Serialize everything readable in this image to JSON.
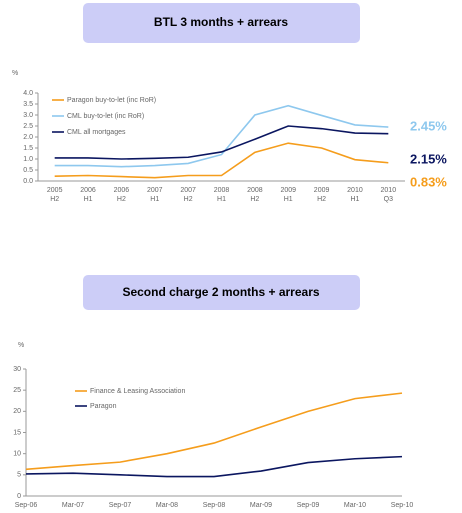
{
  "chart_data": [
    {
      "type": "line",
      "title": "BTL 3 months + arrears",
      "y_label": "%",
      "categories": [
        "2005\nH2",
        "2006\nH1",
        "2006\nH2",
        "2007\nH1",
        "2007\nH2",
        "2008\nH1",
        "2008\nH2",
        "2009\nH1",
        "2009\nH2",
        "2010\nH1",
        "2010\nQ3"
      ],
      "series": [
        {
          "name": "Paragon buy-to-let (inc RoR)",
          "color": "#f59d1c",
          "values": [
            0.22,
            0.25,
            0.2,
            0.15,
            0.25,
            0.25,
            1.3,
            1.72,
            1.5,
            0.97,
            0.83
          ],
          "value_labels": [
            null,
            null,
            null,
            null,
            null,
            null,
            null,
            null,
            null,
            null,
            "0.83%"
          ]
        },
        {
          "name": "CML buy-to-let (inc RoR)",
          "color": "#8ec8ee",
          "values": [
            0.7,
            0.7,
            0.65,
            0.7,
            0.8,
            1.2,
            3.0,
            3.42,
            2.98,
            2.55,
            2.45
          ],
          "value_labels": [
            null,
            null,
            null,
            null,
            null,
            null,
            null,
            null,
            null,
            null,
            "2.45%"
          ]
        },
        {
          "name": "CML all mortgages",
          "color": "#0b1660",
          "values": [
            1.05,
            1.05,
            1.0,
            1.03,
            1.08,
            1.32,
            1.9,
            2.5,
            2.38,
            2.18,
            2.15
          ],
          "value_labels": [
            null,
            null,
            null,
            null,
            null,
            null,
            null,
            null,
            null,
            null,
            "2.15%"
          ]
        }
      ],
      "ylim": [
        0,
        4
      ],
      "yticks": [
        {
          "value": 0,
          "label": "0.0"
        },
        {
          "value": 0.5,
          "label": "0.5"
        },
        {
          "value": 1,
          "label": "1.0"
        },
        {
          "value": 1.5,
          "label": "1.5"
        },
        {
          "value": 2,
          "label": "2.0"
        },
        {
          "value": 2.5,
          "label": "2.5"
        },
        {
          "value": 3,
          "label": "3.0"
        },
        {
          "value": 3.5,
          "label": "3.5"
        },
        {
          "value": 4,
          "label": "4.0"
        }
      ]
    },
    {
      "type": "line",
      "title": "Second charge 2 months + arrears",
      "y_label": "%",
      "categories": [
        "Sep-06",
        "Mar-07",
        "Sep-07",
        "Mar-08",
        "Sep-08",
        "Mar-09",
        "Sep-09",
        "Mar-10",
        "Sep-10"
      ],
      "series": [
        {
          "name": "Finance & Leasing Association",
          "color": "#f59d1c",
          "values": [
            6.3,
            7.2,
            8.0,
            10.0,
            12.5,
            16.3,
            20.0,
            23.0,
            24.3
          ]
        },
        {
          "name": "Paragon",
          "color": "#0b1660",
          "values": [
            5.2,
            5.4,
            5.0,
            4.6,
            4.6,
            5.9,
            7.9,
            8.8,
            9.3
          ]
        }
      ],
      "ylim": [
        0,
        30
      ],
      "yticks": [
        0,
        5,
        10,
        15,
        20,
        25,
        30
      ]
    }
  ]
}
